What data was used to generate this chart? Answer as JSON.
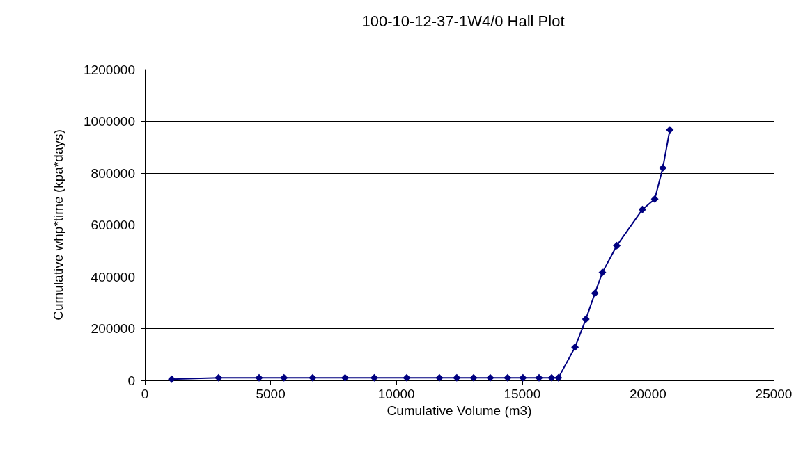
{
  "chart_data": {
    "type": "line",
    "title": "100-10-12-37-1W4/0 Hall Plot",
    "xlabel": "Cumulative Volume (m3)",
    "ylabel": "Cumulative whp*time (kpa*days)",
    "x": [
      1070,
      2930,
      4540,
      5530,
      6670,
      7960,
      9120,
      10410,
      11710,
      12400,
      13070,
      13730,
      14420,
      15030,
      15670,
      16170,
      16440,
      17100,
      17530,
      17890,
      18190,
      18760,
      19780,
      20270,
      20590,
      20870
    ],
    "series": [
      {
        "color": "#000080",
        "values": [
          5000,
          10000,
          10000,
          10000,
          10000,
          10000,
          10000,
          10000,
          10000,
          10000,
          10000,
          10000,
          10000,
          10000,
          10000,
          10000,
          10000,
          128000,
          236000,
          336000,
          417000,
          520000,
          660000,
          700000,
          820000,
          967000
        ]
      }
    ],
    "xlim": [
      0,
      25000
    ],
    "xticks": [
      0,
      5000,
      10000,
      15000,
      20000,
      25000
    ],
    "ylim": [
      0,
      1200000
    ],
    "yticks": [
      0,
      200000,
      400000,
      600000,
      800000,
      1000000,
      1200000
    ],
    "grid": "y",
    "marker": "diamond",
    "line_style": "solid"
  }
}
